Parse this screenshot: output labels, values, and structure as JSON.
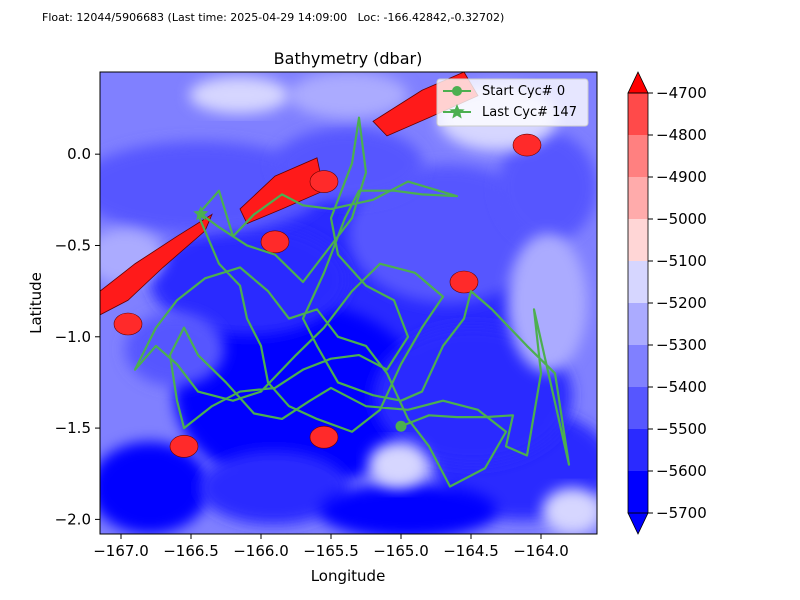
{
  "header": {
    "text": "Float: 12044/5906683 (Last time: 2025-04-29 14:09:00   Loc: -166.42842,-0.32702)"
  },
  "chart_data": {
    "type": "contour",
    "title": "Bathymetry (dbar)",
    "xlabel": "Longitude",
    "ylabel": "Latitude",
    "xlim": [
      -167.15,
      -163.6
    ],
    "ylim": [
      -2.08,
      0.45
    ],
    "xticks": [
      -167.0,
      -166.5,
      -166.0,
      -165.5,
      -165.0,
      -164.5,
      -164.0
    ],
    "xtick_labels": [
      "−167.0",
      "−166.5",
      "−166.0",
      "−165.5",
      "−165.0",
      "−164.5",
      "−164.0"
    ],
    "yticks": [
      0.0,
      -0.5,
      -1.0,
      -1.5,
      -2.0
    ],
    "ytick_labels": [
      "0.0",
      "−0.5",
      "−1.0",
      "−1.5",
      "−2.0"
    ],
    "colorbar": {
      "levels": [
        -5700,
        -5600,
        -5500,
        -5400,
        -5300,
        -5200,
        -5100,
        -5000,
        -4900,
        -4800,
        -4700
      ],
      "tick_labels": [
        "−5700",
        "−5600",
        "−5500",
        "−5400",
        "−5300",
        "−5200",
        "−5100",
        "−5000",
        "−4900",
        "−4800",
        "−4700"
      ],
      "colors": [
        "#0000ff",
        "#2a2aff",
        "#5656ff",
        "#8080ff",
        "#ababff",
        "#d6d6ff",
        "#ffd6d6",
        "#ffabab",
        "#ff8080",
        "#ff4a4a",
        "#ff0000"
      ],
      "extend": "both"
    },
    "legend": {
      "placement": "top-right",
      "entries": [
        {
          "label": "Start Cyc# 0",
          "marker": "circle"
        },
        {
          "label": "Last Cyc# 147",
          "marker": "star"
        }
      ]
    },
    "track": {
      "color": "#4caf50",
      "start": {
        "lon": -165.0,
        "lat": -1.49
      },
      "end": {
        "lon": -166.43,
        "lat": -0.327
      },
      "path": [
        [
          -165.0,
          -1.49
        ],
        [
          -164.8,
          -1.43
        ],
        [
          -164.6,
          -1.44
        ],
        [
          -164.4,
          -1.44
        ],
        [
          -164.2,
          -1.43
        ],
        [
          -164.25,
          -1.6
        ],
        [
          -164.1,
          -1.65
        ],
        [
          -164.0,
          -1.2
        ],
        [
          -164.05,
          -0.85
        ],
        [
          -163.8,
          -1.7
        ],
        [
          -163.9,
          -1.2
        ],
        [
          -164.1,
          -1.05
        ],
        [
          -164.35,
          -0.85
        ],
        [
          -164.5,
          -0.75
        ],
        [
          -164.55,
          -0.9
        ],
        [
          -164.7,
          -1.05
        ],
        [
          -164.85,
          -1.3
        ],
        [
          -165.0,
          -1.35
        ],
        [
          -165.2,
          -1.32
        ],
        [
          -165.45,
          -1.25
        ],
        [
          -165.6,
          -1.05
        ],
        [
          -165.7,
          -0.9
        ],
        [
          -165.55,
          -0.65
        ],
        [
          -165.4,
          -0.35
        ],
        [
          -165.3,
          -0.2
        ],
        [
          -165.05,
          -0.2
        ],
        [
          -164.85,
          -0.22
        ],
        [
          -164.6,
          -0.23
        ],
        [
          -164.95,
          -0.15
        ],
        [
          -165.2,
          -0.25
        ],
        [
          -165.5,
          -0.3
        ],
        [
          -165.7,
          -0.28
        ],
        [
          -165.85,
          -0.22
        ],
        [
          -166.05,
          -0.33
        ],
        [
          -166.2,
          -0.45
        ],
        [
          -166.3,
          -0.2
        ],
        [
          -166.45,
          -0.33
        ],
        [
          -166.3,
          -0.6
        ],
        [
          -166.15,
          -0.72
        ],
        [
          -166.1,
          -0.9
        ],
        [
          -166.0,
          -1.05
        ],
        [
          -165.95,
          -1.25
        ],
        [
          -165.8,
          -1.38
        ],
        [
          -165.6,
          -1.45
        ],
        [
          -165.35,
          -1.52
        ],
        [
          -165.15,
          -1.4
        ],
        [
          -165.0,
          -1.15
        ],
        [
          -164.85,
          -0.95
        ],
        [
          -164.7,
          -0.78
        ],
        [
          -164.9,
          -0.65
        ],
        [
          -165.15,
          -0.6
        ],
        [
          -165.35,
          -0.75
        ],
        [
          -165.55,
          -0.95
        ],
        [
          -165.75,
          -1.1
        ],
        [
          -166.0,
          -1.3
        ],
        [
          -166.2,
          -1.35
        ],
        [
          -166.45,
          -1.3
        ],
        [
          -166.6,
          -1.15
        ],
        [
          -166.75,
          -1.05
        ],
        [
          -166.9,
          -1.18
        ],
        [
          -166.75,
          -0.95
        ],
        [
          -166.6,
          -0.8
        ],
        [
          -166.4,
          -0.68
        ],
        [
          -166.15,
          -0.62
        ],
        [
          -165.95,
          -0.75
        ],
        [
          -165.8,
          -0.9
        ],
        [
          -165.6,
          -0.85
        ],
        [
          -165.45,
          -1.0
        ],
        [
          -165.25,
          -1.05
        ],
        [
          -165.1,
          -1.2
        ],
        [
          -164.95,
          -1.45
        ],
        [
          -164.8,
          -1.6
        ],
        [
          -164.65,
          -1.82
        ],
        [
          -164.4,
          -1.72
        ],
        [
          -164.25,
          -1.52
        ],
        [
          -164.45,
          -1.4
        ],
        [
          -164.7,
          -1.35
        ],
        [
          -164.95,
          -1.4
        ],
        [
          -165.25,
          -1.38
        ],
        [
          -165.5,
          -1.28
        ],
        [
          -165.65,
          -1.35
        ],
        [
          -165.85,
          -1.45
        ],
        [
          -166.05,
          -1.42
        ],
        [
          -166.25,
          -1.25
        ],
        [
          -166.45,
          -1.1
        ],
        [
          -166.55,
          -0.95
        ],
        [
          -166.65,
          -1.1
        ],
        [
          -166.6,
          -1.35
        ],
        [
          -166.55,
          -1.5
        ],
        [
          -166.35,
          -1.38
        ],
        [
          -166.15,
          -1.3
        ],
        [
          -165.9,
          -1.28
        ],
        [
          -165.7,
          -1.18
        ],
        [
          -165.5,
          -1.12
        ],
        [
          -165.3,
          -1.1
        ],
        [
          -165.1,
          -1.18
        ],
        [
          -164.95,
          -1.0
        ],
        [
          -165.05,
          -0.8
        ],
        [
          -165.25,
          -0.72
        ],
        [
          -165.45,
          -0.55
        ],
        [
          -165.5,
          -0.35
        ],
        [
          -165.35,
          -0.05
        ],
        [
          -165.3,
          0.2
        ],
        [
          -165.25,
          -0.1
        ],
        [
          -165.35,
          -0.35
        ],
        [
          -165.55,
          -0.55
        ],
        [
          -165.7,
          -0.7
        ],
        [
          -165.9,
          -0.55
        ],
        [
          -166.1,
          -0.5
        ],
        [
          -166.3,
          -0.4
        ],
        [
          -166.43,
          -0.327
        ]
      ]
    }
  }
}
